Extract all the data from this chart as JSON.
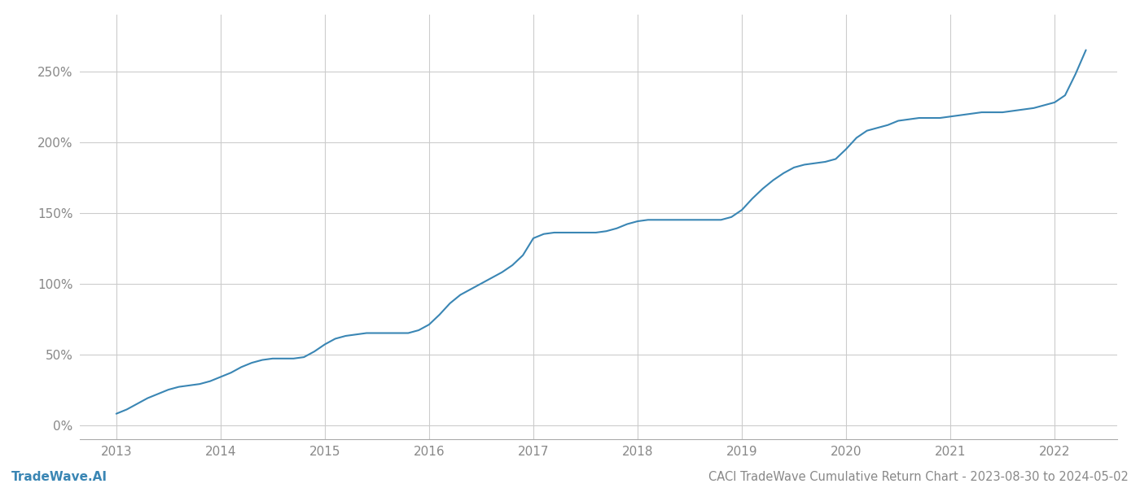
{
  "title": "CACI TradeWave Cumulative Return Chart - 2023-08-30 to 2024-05-02",
  "watermark": "TradeWave.AI",
  "line_color": "#3a86b4",
  "background_color": "#ffffff",
  "grid_color": "#cccccc",
  "x_years": [
    2013,
    2014,
    2015,
    2016,
    2017,
    2018,
    2019,
    2020,
    2021,
    2022
  ],
  "data_x": [
    2013.0,
    2013.1,
    2013.2,
    2013.3,
    2013.4,
    2013.5,
    2013.6,
    2013.7,
    2013.8,
    2013.9,
    2014.0,
    2014.1,
    2014.2,
    2014.3,
    2014.4,
    2014.5,
    2014.6,
    2014.7,
    2014.8,
    2014.9,
    2015.0,
    2015.1,
    2015.2,
    2015.3,
    2015.4,
    2015.5,
    2015.6,
    2015.7,
    2015.8,
    2015.9,
    2016.0,
    2016.1,
    2016.2,
    2016.3,
    2016.4,
    2016.5,
    2016.6,
    2016.7,
    2016.8,
    2016.9,
    2017.0,
    2017.1,
    2017.2,
    2017.3,
    2017.4,
    2017.5,
    2017.6,
    2017.7,
    2017.8,
    2017.9,
    2018.0,
    2018.1,
    2018.2,
    2018.3,
    2018.4,
    2018.5,
    2018.6,
    2018.7,
    2018.8,
    2018.9,
    2019.0,
    2019.1,
    2019.2,
    2019.3,
    2019.4,
    2019.5,
    2019.6,
    2019.7,
    2019.8,
    2019.9,
    2020.0,
    2020.1,
    2020.2,
    2020.3,
    2020.4,
    2020.5,
    2020.6,
    2020.7,
    2020.8,
    2020.9,
    2021.0,
    2021.1,
    2021.2,
    2021.3,
    2021.4,
    2021.5,
    2021.6,
    2021.7,
    2021.8,
    2021.9,
    2022.0,
    2022.1,
    2022.2,
    2022.3
  ],
  "data_y": [
    8,
    11,
    15,
    19,
    22,
    25,
    27,
    28,
    29,
    31,
    34,
    37,
    41,
    44,
    46,
    47,
    47,
    47,
    48,
    52,
    57,
    61,
    63,
    64,
    65,
    65,
    65,
    65,
    65,
    67,
    71,
    78,
    86,
    92,
    96,
    100,
    104,
    108,
    113,
    120,
    132,
    135,
    136,
    136,
    136,
    136,
    136,
    137,
    139,
    142,
    144,
    145,
    145,
    145,
    145,
    145,
    145,
    145,
    145,
    147,
    152,
    160,
    167,
    173,
    178,
    182,
    184,
    185,
    186,
    188,
    195,
    203,
    208,
    210,
    212,
    215,
    216,
    217,
    217,
    217,
    218,
    219,
    220,
    221,
    221,
    221,
    222,
    223,
    224,
    226,
    228,
    233,
    248,
    265
  ],
  "ylim": [
    -10,
    290
  ],
  "yticks": [
    0,
    50,
    100,
    150,
    200,
    250
  ],
  "ytick_labels": [
    "0%",
    "50%",
    "100%",
    "150%",
    "200%",
    "250%"
  ],
  "title_fontsize": 10.5,
  "watermark_fontsize": 11,
  "axis_label_fontsize": 11,
  "line_width": 1.5,
  "xlim_left": 2012.65,
  "xlim_right": 2022.6
}
